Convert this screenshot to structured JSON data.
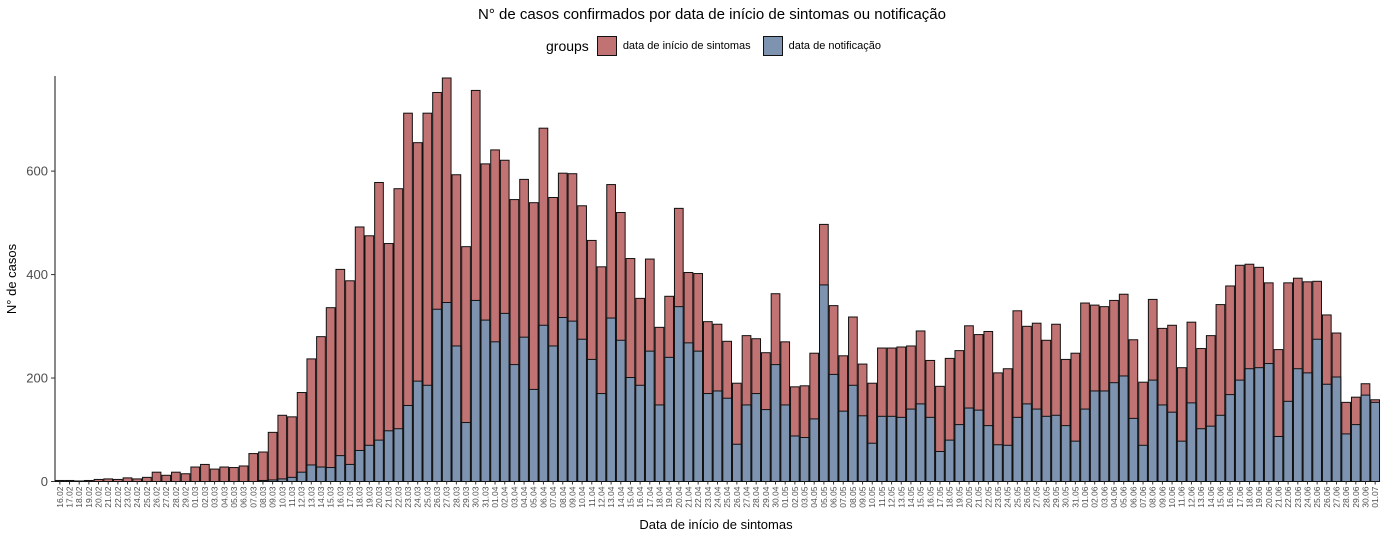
{
  "chart_data": {
    "type": "bar",
    "stacked": false,
    "title": "N° de casos confirmados por data de início de sintomas ou notificação",
    "xlabel": "Data de início de sintomas",
    "ylabel": "N° de casos",
    "ylim": [
      0,
      780
    ],
    "yticks": [
      0,
      200,
      400,
      600
    ],
    "grid": false,
    "legend": {
      "title": "groups",
      "position": "top"
    },
    "series": [
      {
        "name": "data de início de sintomas",
        "color": "#c17272"
      },
      {
        "name": "data de notificação",
        "color": "#7d93b0"
      }
    ],
    "categories": [
      "16.02",
      "17.02",
      "18.02",
      "19.02",
      "20.02",
      "21.02",
      "22.02",
      "23.02",
      "24.02",
      "25.02",
      "26.02",
      "27.02",
      "28.02",
      "29.02",
      "01.03",
      "02.03",
      "03.03",
      "04.03",
      "05.03",
      "06.03",
      "07.03",
      "08.03",
      "09.03",
      "10.03",
      "11.03",
      "12.03",
      "13.03",
      "14.03",
      "15.03",
      "16.03",
      "17.03",
      "18.03",
      "19.03",
      "20.03",
      "21.03",
      "22.03",
      "23.03",
      "24.03",
      "25.03",
      "26.03",
      "27.03",
      "28.03",
      "29.03",
      "30.03",
      "31.03",
      "01.04",
      "02.04",
      "03.04",
      "04.04",
      "05.04",
      "06.04",
      "07.04",
      "08.04",
      "09.04",
      "10.04",
      "11.04",
      "12.04",
      "13.04",
      "14.04",
      "15.04",
      "16.04",
      "17.04",
      "18.04",
      "19.04",
      "20.04",
      "21.04",
      "22.04",
      "23.04",
      "24.04",
      "25.04",
      "26.04",
      "27.04",
      "28.04",
      "29.04",
      "30.04",
      "01.05",
      "02.05",
      "03.05",
      "04.05",
      "05.05",
      "06.05",
      "07.05",
      "08.05",
      "09.05",
      "10.05",
      "11.05",
      "12.05",
      "13.05",
      "14.05",
      "15.05",
      "16.05",
      "17.05",
      "18.05",
      "19.05",
      "20.05",
      "21.05",
      "22.05",
      "23.05",
      "24.05",
      "25.05",
      "26.05",
      "27.05",
      "28.05",
      "29.05",
      "30.05",
      "31.05",
      "01.06",
      "02.06",
      "03.06",
      "04.06",
      "05.06",
      "06.06",
      "07.06",
      "08.06",
      "09.06",
      "10.06",
      "11.06",
      "12.06",
      "13.06",
      "14.06",
      "15.06",
      "16.06",
      "17.06",
      "18.06",
      "19.06",
      "20.06",
      "21.06",
      "22.06",
      "23.06",
      "24.06",
      "25.06",
      "26.06",
      "27.06",
      "28.06",
      "29.06",
      "30.06",
      "01.07"
    ],
    "values_sintomas": [
      2,
      2,
      1,
      2,
      4,
      5,
      4,
      7,
      5,
      8,
      18,
      12,
      18,
      15,
      28,
      33,
      24,
      28,
      27,
      30,
      54,
      57,
      95,
      128,
      125,
      172,
      237,
      280,
      336,
      410,
      388,
      492,
      475,
      578,
      460,
      566,
      712,
      655,
      712,
      752,
      780,
      593,
      454,
      756,
      614,
      641,
      621,
      545,
      584,
      539,
      683,
      549,
      596,
      595,
      533,
      466,
      415,
      574,
      520,
      431,
      354,
      430,
      298,
      358,
      528,
      404,
      402,
      309,
      304,
      271,
      190,
      282,
      276,
      249,
      363,
      270,
      183,
      185,
      248,
      497,
      340,
      243,
      318,
      227,
      190,
      258,
      258,
      260,
      262,
      291,
      234,
      184,
      238,
      253,
      301,
      284,
      290,
      210,
      218,
      330,
      300,
      306,
      273,
      304,
      236,
      248,
      345,
      341,
      338,
      350,
      362,
      274,
      192,
      352,
      296,
      302,
      220,
      308,
      257,
      282,
      342,
      378,
      418,
      420,
      414,
      384,
      255,
      384,
      393,
      386,
      387,
      322,
      287,
      153,
      163,
      189,
      158
    ],
    "values_notificacao": [
      0,
      0,
      0,
      0,
      0,
      0,
      0,
      0,
      0,
      0,
      0,
      0,
      0,
      0,
      0,
      0,
      0,
      0,
      0,
      0,
      0,
      2,
      3,
      5,
      8,
      18,
      32,
      28,
      27,
      50,
      33,
      60,
      70,
      80,
      98,
      102,
      147,
      194,
      186,
      333,
      346,
      262,
      114,
      350,
      312,
      270,
      325,
      226,
      279,
      178,
      302,
      262,
      317,
      310,
      275,
      236,
      170,
      316,
      273,
      201,
      186,
      252,
      148,
      240,
      338,
      268,
      252,
      170,
      175,
      161,
      72,
      148,
      170,
      139,
      226,
      148,
      88,
      85,
      121,
      380,
      207,
      136,
      186,
      127,
      74,
      126,
      126,
      124,
      140,
      150,
      124,
      58,
      80,
      110,
      142,
      138,
      108,
      71,
      70,
      124,
      150,
      140,
      126,
      128,
      108,
      78,
      140,
      175,
      175,
      191,
      204,
      122,
      70,
      196,
      148,
      134,
      78,
      152,
      102,
      107,
      128,
      168,
      196,
      218,
      220,
      228,
      87,
      155,
      218,
      210,
      275,
      188,
      202,
      92,
      110,
      167,
      153
    ]
  }
}
